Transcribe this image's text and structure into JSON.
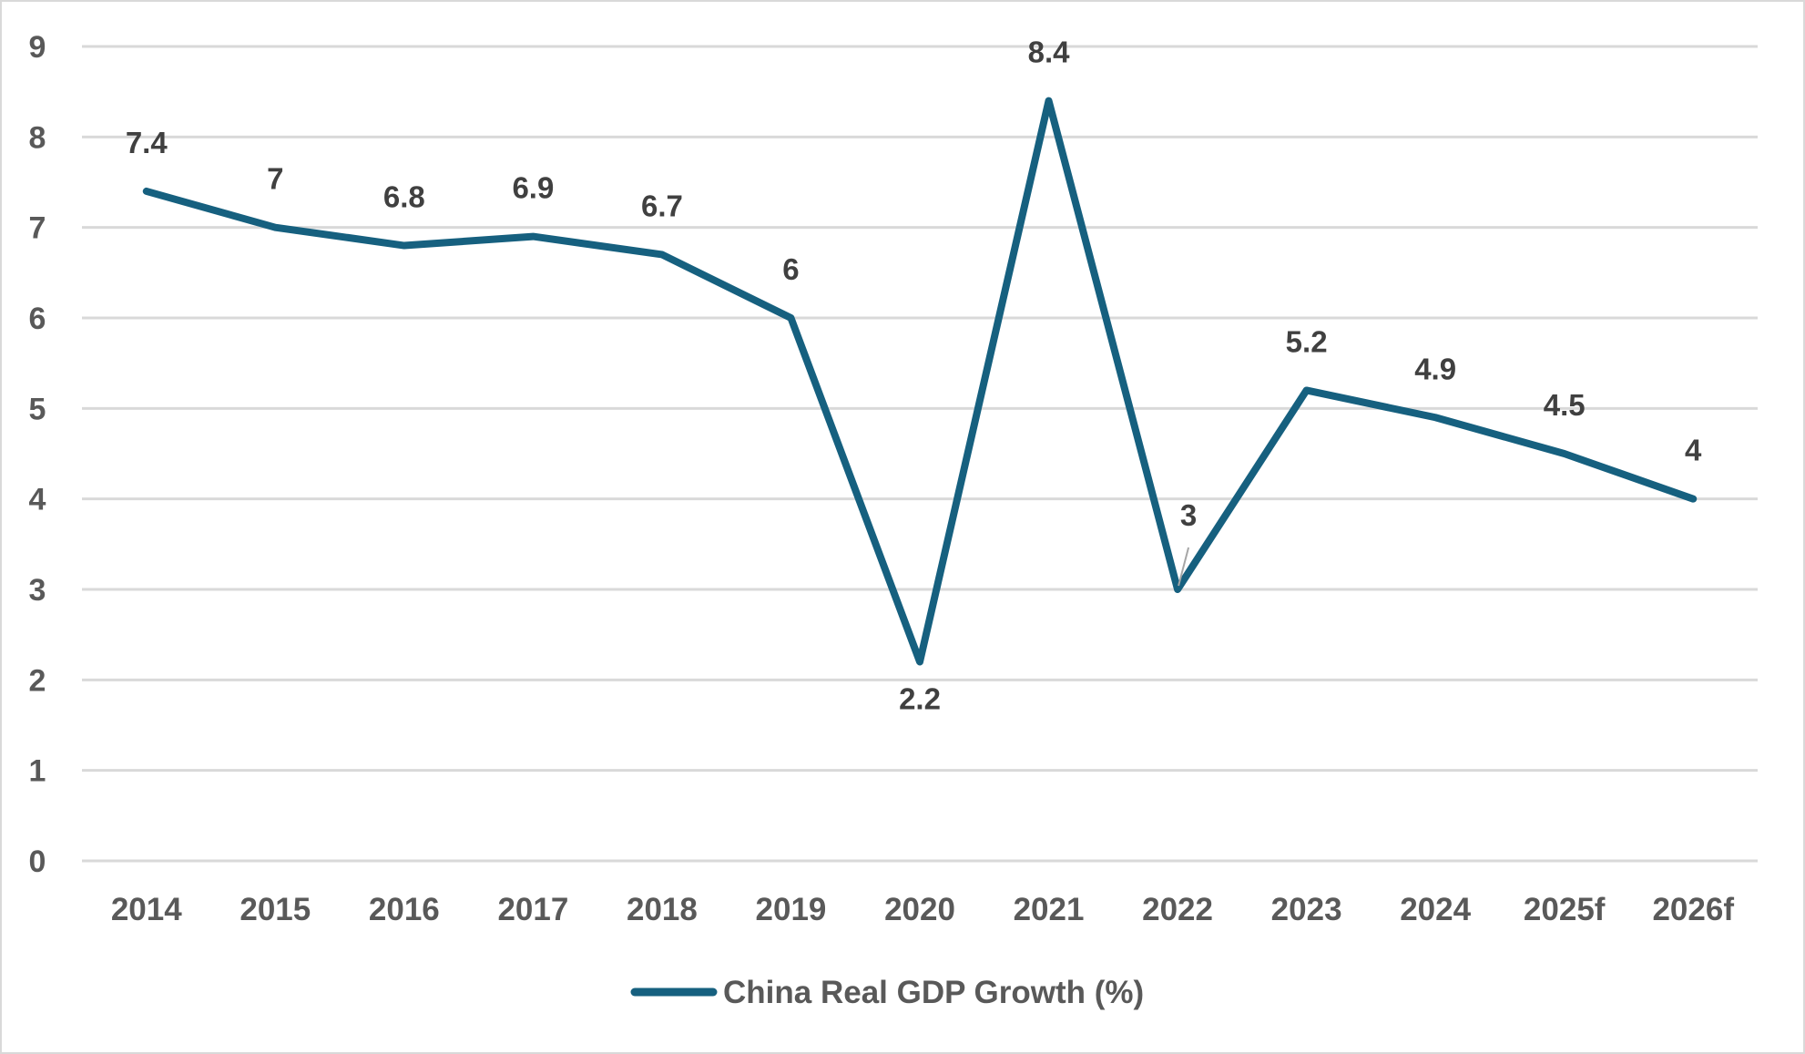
{
  "chart_data": {
    "type": "line",
    "title": "",
    "xlabel": "",
    "ylabel": "",
    "categories": [
      "2014",
      "2015",
      "2016",
      "2017",
      "2018",
      "2019",
      "2020",
      "2021",
      "2022",
      "2023",
      "2024",
      "2025f",
      "2026f"
    ],
    "series": [
      {
        "name": "China Real GDP Growth (%)",
        "color": "#16607f",
        "values": [
          7.4,
          7,
          6.8,
          6.9,
          6.7,
          6,
          2.2,
          8.4,
          3,
          5.2,
          4.9,
          4.5,
          4
        ],
        "data_labels": [
          "7.4",
          "7",
          "6.8",
          "6.9",
          "6.7",
          "6",
          "2.2",
          "8.4",
          "3",
          "5.2",
          "4.9",
          "4.5",
          "4"
        ]
      }
    ],
    "ylim": [
      0,
      9
    ],
    "yticks": [
      "0",
      "1",
      "2",
      "3",
      "4",
      "5",
      "6",
      "7",
      "8",
      "9"
    ],
    "grid": true,
    "legend": {
      "position": "bottom",
      "entries": [
        "China Real GDP Growth (%)"
      ]
    }
  }
}
